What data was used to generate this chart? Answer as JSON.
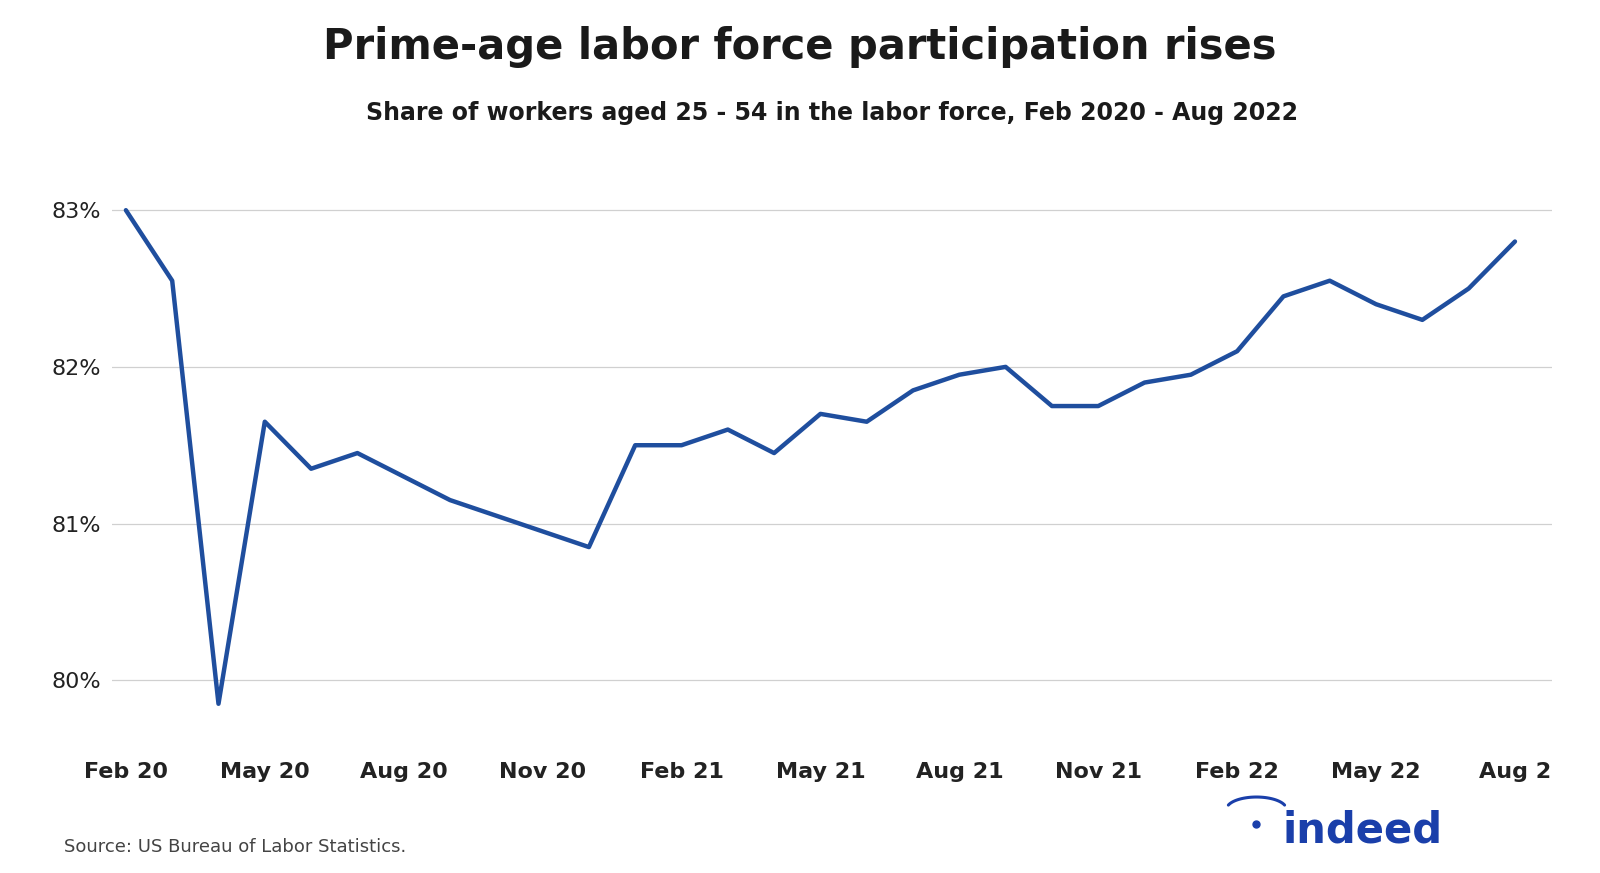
{
  "title": "Prime-age labor force participation rises",
  "subtitle": "Share of workers aged 25 - 54 in the labor force, Feb 2020 - Aug 2022",
  "source": "Source: US Bureau of Labor Statistics.",
  "line_color": "#1f4e9e",
  "background_color": "#ffffff",
  "title_fontsize": 30,
  "subtitle_fontsize": 17,
  "line_width": 3.2,
  "x_tick_labels": [
    "Feb 20",
    "May 20",
    "Aug 20",
    "Nov 20",
    "Feb 21",
    "May 21",
    "Aug 21",
    "Nov 21",
    "Feb 22",
    "May 22",
    "Aug 2"
  ],
  "x_tick_positions": [
    0,
    3,
    6,
    9,
    12,
    15,
    18,
    21,
    24,
    27,
    30
  ],
  "ylim": [
    79.55,
    83.45
  ],
  "yticks": [
    80,
    81,
    82,
    83
  ],
  "ytick_labels": [
    "80%",
    "81%",
    "82%",
    "83%"
  ],
  "months": [
    0,
    1,
    2,
    3,
    4,
    5,
    6,
    7,
    8,
    9,
    10,
    11,
    12,
    13,
    14,
    15,
    16,
    17,
    18,
    19,
    20,
    21,
    22,
    23,
    24,
    25,
    26,
    27,
    28,
    29,
    30
  ],
  "values": [
    83.0,
    82.55,
    79.85,
    81.65,
    81.35,
    81.45,
    81.3,
    81.15,
    81.05,
    80.95,
    80.85,
    81.5,
    81.5,
    81.6,
    81.45,
    81.7,
    81.65,
    81.85,
    81.95,
    82.0,
    81.75,
    81.75,
    81.9,
    81.95,
    82.1,
    82.45,
    82.55,
    82.4,
    82.3,
    82.5,
    82.8
  ],
  "indeed_color": "#1a3faa"
}
